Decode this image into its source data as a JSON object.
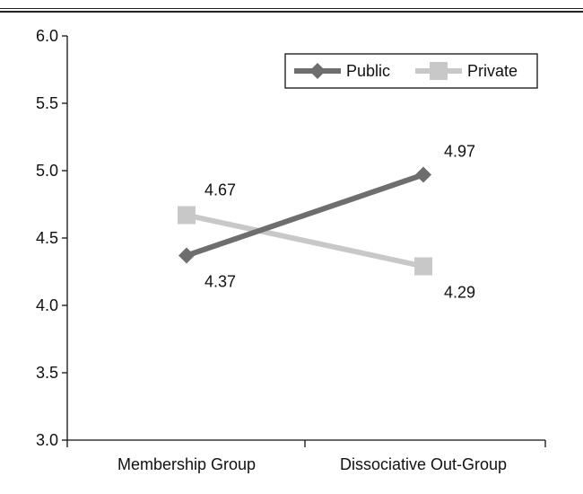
{
  "chart_data": {
    "type": "line",
    "categories": [
      "Membership Group",
      "Dissociative Out-Group"
    ],
    "series": [
      {
        "name": "Public",
        "values": [
          4.37,
          4.97
        ],
        "color": "#6e6e6e",
        "marker": "diamond"
      },
      {
        "name": "Private",
        "values": [
          4.67,
          4.29
        ],
        "color": "#c8c8c8",
        "marker": "square"
      }
    ],
    "data_labels": {
      "Public": [
        "4.37",
        "4.97"
      ],
      "Private": [
        "4.67",
        "4.29"
      ]
    },
    "ylim": [
      3.0,
      6.0
    ],
    "yticks": [
      "3.0",
      "3.5",
      "4.0",
      "4.5",
      "5.0",
      "5.5",
      "6.0"
    ],
    "title": "",
    "xlabel": "",
    "ylabel": "",
    "grid": false,
    "legend_position": "top-right"
  }
}
